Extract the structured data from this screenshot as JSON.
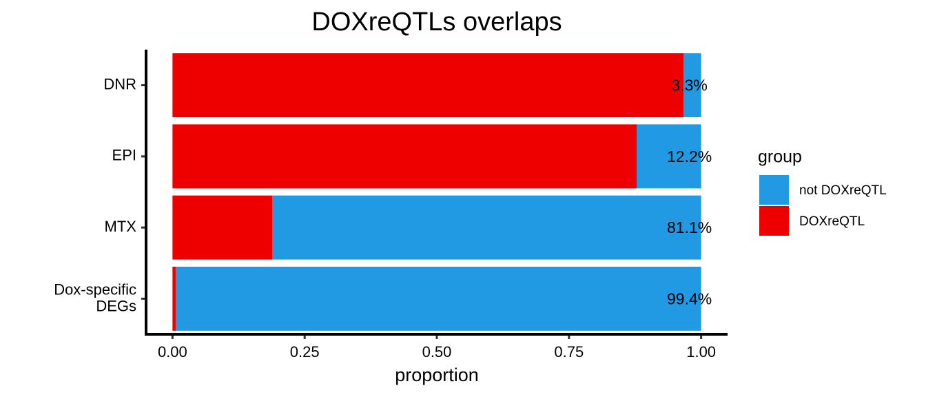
{
  "chart_data": {
    "type": "stacked-bar-horizontal",
    "title": "DOXreQTLs overlaps",
    "x_label": "proportion",
    "categories": [
      "DNR",
      "EPI",
      "MTX",
      "Dox-specific\nDEGs"
    ],
    "series": [
      {
        "name": "not DOXreQTL",
        "color": "#2299e3",
        "values": [
          0.033,
          0.122,
          0.811,
          0.994
        ],
        "value_labels": [
          "3.3%",
          "12.2%",
          "81.1%",
          "99.4%"
        ]
      },
      {
        "name": "DOXreQTL",
        "color": "#ee0000",
        "values": [
          0.967,
          0.878,
          0.189,
          0.006
        ]
      }
    ],
    "xlim": [
      -0.05,
      1.05
    ],
    "xticks": [
      {
        "value": 0,
        "label": "0.00"
      },
      {
        "value": 0.25,
        "label": "0.25"
      },
      {
        "value": 0.5,
        "label": "0.50"
      },
      {
        "value": 0.75,
        "label": "0.75"
      },
      {
        "value": 1,
        "label": "1.00"
      }
    ],
    "legend_title": "group",
    "legend_position": "right",
    "grid": false
  }
}
